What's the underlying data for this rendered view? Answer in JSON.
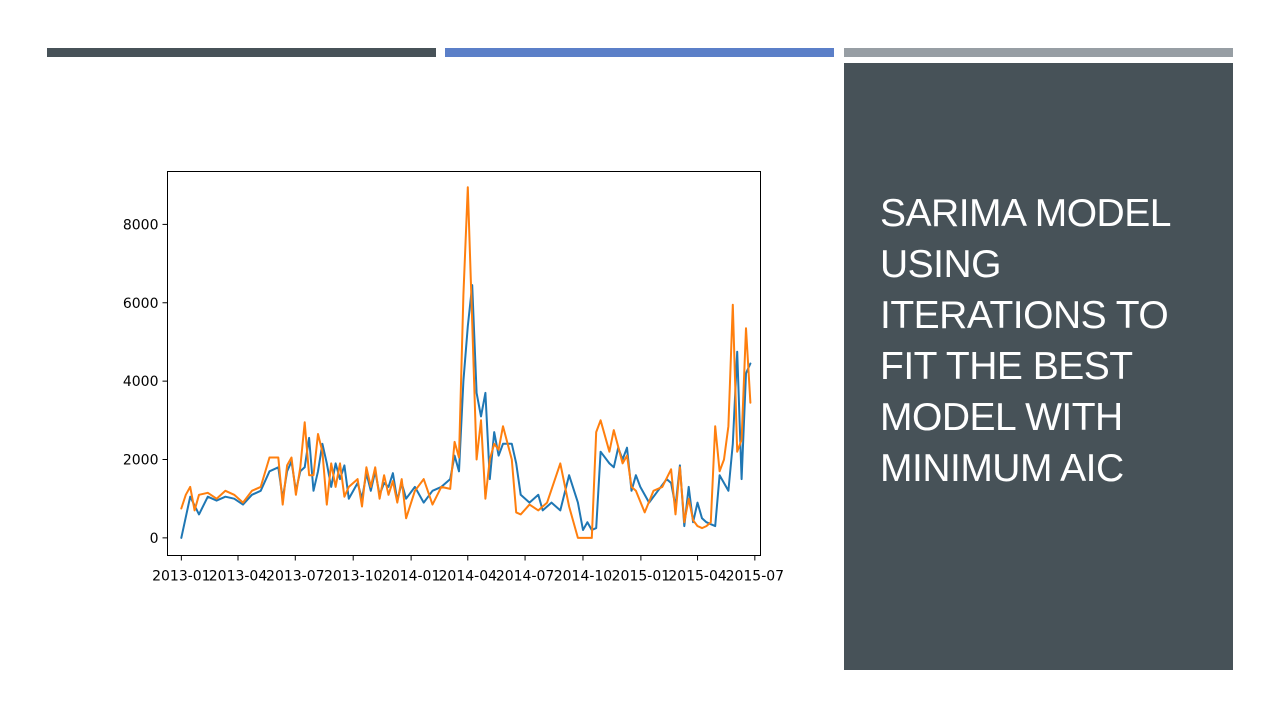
{
  "slide": {
    "title": "SARIMA MODEL USING ITERATIONS TO FIT THE BEST MODEL WITH MINIMUM AIC",
    "panel_color": "#475258",
    "accent_bars": [
      "#475258",
      "#5b7fc8",
      "#979ea4"
    ]
  },
  "chart_data": {
    "type": "line",
    "title": "",
    "xlabel": "",
    "ylabel": "",
    "grid": false,
    "legend": "none",
    "xlim": [
      "2012-12-10",
      "2015-07-10"
    ],
    "ylim": [
      -450,
      9350
    ],
    "xticks": [
      "2013-01",
      "2013-04",
      "2013-07",
      "2013-10",
      "2014-01",
      "2014-04",
      "2014-07",
      "2014-10",
      "2015-01",
      "2015-04",
      "2015-07"
    ],
    "xtick_dates": [
      "2013-01-01",
      "2013-04-01",
      "2013-07-01",
      "2013-10-01",
      "2014-01-01",
      "2014-04-01",
      "2014-07-01",
      "2014-10-01",
      "2015-01-01",
      "2015-04-01",
      "2015-07-01"
    ],
    "yticks": [
      0,
      2000,
      4000,
      6000,
      8000
    ],
    "series": [
      {
        "color": "#1f77b4",
        "points": [
          [
            "2013-01-01",
            0
          ],
          [
            "2013-01-15",
            1050
          ],
          [
            "2013-01-29",
            600
          ],
          [
            "2013-02-12",
            1050
          ],
          [
            "2013-02-26",
            950
          ],
          [
            "2013-03-12",
            1050
          ],
          [
            "2013-03-26",
            1000
          ],
          [
            "2013-04-09",
            850
          ],
          [
            "2013-04-23",
            1100
          ],
          [
            "2013-05-07",
            1200
          ],
          [
            "2013-05-21",
            1700
          ],
          [
            "2013-06-04",
            1800
          ],
          [
            "2013-06-11",
            1000
          ],
          [
            "2013-06-18",
            1700
          ],
          [
            "2013-06-25",
            1950
          ],
          [
            "2013-07-02",
            1200
          ],
          [
            "2013-07-09",
            1700
          ],
          [
            "2013-07-16",
            1800
          ],
          [
            "2013-07-23",
            2550
          ],
          [
            "2013-07-30",
            1200
          ],
          [
            "2013-08-06",
            1700
          ],
          [
            "2013-08-13",
            2400
          ],
          [
            "2013-08-20",
            1900
          ],
          [
            "2013-08-27",
            1300
          ],
          [
            "2013-09-03",
            1900
          ],
          [
            "2013-09-10",
            1500
          ],
          [
            "2013-09-17",
            1850
          ],
          [
            "2013-09-24",
            1000
          ],
          [
            "2013-10-08",
            1400
          ],
          [
            "2013-10-15",
            1000
          ],
          [
            "2013-10-22",
            1650
          ],
          [
            "2013-10-29",
            1200
          ],
          [
            "2013-11-05",
            1700
          ],
          [
            "2013-11-12",
            1100
          ],
          [
            "2013-11-19",
            1400
          ],
          [
            "2013-11-26",
            1300
          ],
          [
            "2013-12-03",
            1650
          ],
          [
            "2013-12-10",
            950
          ],
          [
            "2013-12-17",
            1400
          ],
          [
            "2013-12-24",
            1000
          ],
          [
            "2014-01-07",
            1300
          ],
          [
            "2014-01-21",
            900
          ],
          [
            "2014-02-04",
            1200
          ],
          [
            "2014-02-18",
            1300
          ],
          [
            "2014-03-04",
            1500
          ],
          [
            "2014-03-11",
            2100
          ],
          [
            "2014-03-18",
            1700
          ],
          [
            "2014-03-25",
            4000
          ],
          [
            "2014-04-01",
            5400
          ],
          [
            "2014-04-08",
            6450
          ],
          [
            "2014-04-15",
            3700
          ],
          [
            "2014-04-22",
            3100
          ],
          [
            "2014-04-29",
            3700
          ],
          [
            "2014-05-06",
            1500
          ],
          [
            "2014-05-13",
            2700
          ],
          [
            "2014-05-20",
            2100
          ],
          [
            "2014-05-27",
            2400
          ],
          [
            "2014-06-10",
            2400
          ],
          [
            "2014-06-17",
            1900
          ],
          [
            "2014-06-24",
            1100
          ],
          [
            "2014-07-08",
            900
          ],
          [
            "2014-07-22",
            1100
          ],
          [
            "2014-07-29",
            700
          ],
          [
            "2014-08-12",
            900
          ],
          [
            "2014-08-26",
            700
          ],
          [
            "2014-09-09",
            1600
          ],
          [
            "2014-09-23",
            900
          ],
          [
            "2014-10-01",
            200
          ],
          [
            "2014-10-08",
            400
          ],
          [
            "2014-10-15",
            200
          ],
          [
            "2014-10-22",
            250
          ],
          [
            "2014-10-29",
            2200
          ],
          [
            "2014-11-12",
            1900
          ],
          [
            "2014-11-19",
            1800
          ],
          [
            "2014-11-26",
            2300
          ],
          [
            "2014-12-03",
            2000
          ],
          [
            "2014-12-10",
            2300
          ],
          [
            "2014-12-17",
            1200
          ],
          [
            "2014-12-24",
            1600
          ],
          [
            "2014-12-31",
            1300
          ],
          [
            "2015-01-14",
            900
          ],
          [
            "2015-01-28",
            1200
          ],
          [
            "2015-02-11",
            1500
          ],
          [
            "2015-02-18",
            1400
          ],
          [
            "2015-02-25",
            800
          ],
          [
            "2015-03-04",
            1850
          ],
          [
            "2015-03-11",
            300
          ],
          [
            "2015-03-18",
            1300
          ],
          [
            "2015-03-25",
            400
          ],
          [
            "2015-04-01",
            900
          ],
          [
            "2015-04-08",
            500
          ],
          [
            "2015-04-15",
            400
          ],
          [
            "2015-04-22",
            350
          ],
          [
            "2015-04-29",
            300
          ],
          [
            "2015-05-06",
            1600
          ],
          [
            "2015-05-13",
            1400
          ],
          [
            "2015-05-20",
            1200
          ],
          [
            "2015-05-27",
            2400
          ],
          [
            "2015-06-03",
            4750
          ],
          [
            "2015-06-10",
            1500
          ],
          [
            "2015-06-17",
            4200
          ],
          [
            "2015-06-24",
            4450
          ]
        ]
      },
      {
        "color": "#ff7f0e",
        "points": [
          [
            "2013-01-01",
            750
          ],
          [
            "2013-01-08",
            1100
          ],
          [
            "2013-01-15",
            1300
          ],
          [
            "2013-01-22",
            700
          ],
          [
            "2013-01-29",
            1100
          ],
          [
            "2013-02-12",
            1150
          ],
          [
            "2013-02-26",
            1000
          ],
          [
            "2013-03-12",
            1200
          ],
          [
            "2013-03-26",
            1100
          ],
          [
            "2013-04-09",
            900
          ],
          [
            "2013-04-23",
            1200
          ],
          [
            "2013-05-07",
            1300
          ],
          [
            "2013-05-21",
            2050
          ],
          [
            "2013-06-04",
            2050
          ],
          [
            "2013-06-11",
            850
          ],
          [
            "2013-06-18",
            1850
          ],
          [
            "2013-06-25",
            2050
          ],
          [
            "2013-07-02",
            1100
          ],
          [
            "2013-07-09",
            1800
          ],
          [
            "2013-07-16",
            2950
          ],
          [
            "2013-07-23",
            1600
          ],
          [
            "2013-07-30",
            1600
          ],
          [
            "2013-08-06",
            2650
          ],
          [
            "2013-08-13",
            2200
          ],
          [
            "2013-08-20",
            850
          ],
          [
            "2013-08-27",
            1900
          ],
          [
            "2013-09-03",
            1300
          ],
          [
            "2013-09-10",
            1900
          ],
          [
            "2013-09-17",
            1050
          ],
          [
            "2013-09-24",
            1300
          ],
          [
            "2013-10-08",
            1500
          ],
          [
            "2013-10-15",
            800
          ],
          [
            "2013-10-22",
            1800
          ],
          [
            "2013-10-29",
            1300
          ],
          [
            "2013-11-05",
            1800
          ],
          [
            "2013-11-12",
            1000
          ],
          [
            "2013-11-19",
            1600
          ],
          [
            "2013-11-26",
            1100
          ],
          [
            "2013-12-03",
            1450
          ],
          [
            "2013-12-10",
            900
          ],
          [
            "2013-12-17",
            1500
          ],
          [
            "2013-12-24",
            500
          ],
          [
            "2014-01-07",
            1200
          ],
          [
            "2014-01-21",
            1500
          ],
          [
            "2014-02-04",
            850
          ],
          [
            "2014-02-18",
            1300
          ],
          [
            "2014-03-04",
            1250
          ],
          [
            "2014-03-11",
            2450
          ],
          [
            "2014-03-18",
            2050
          ],
          [
            "2014-03-25",
            6200
          ],
          [
            "2014-04-01",
            8950
          ],
          [
            "2014-04-08",
            5500
          ],
          [
            "2014-04-15",
            2000
          ],
          [
            "2014-04-22",
            3000
          ],
          [
            "2014-04-29",
            1000
          ],
          [
            "2014-05-06",
            2000
          ],
          [
            "2014-05-13",
            2400
          ],
          [
            "2014-05-20",
            2250
          ],
          [
            "2014-05-27",
            2850
          ],
          [
            "2014-06-10",
            2000
          ],
          [
            "2014-06-17",
            650
          ],
          [
            "2014-06-24",
            600
          ],
          [
            "2014-07-08",
            850
          ],
          [
            "2014-07-22",
            700
          ],
          [
            "2014-08-05",
            900
          ],
          [
            "2014-08-26",
            1900
          ],
          [
            "2014-09-09",
            800
          ],
          [
            "2014-09-23",
            0
          ],
          [
            "2014-10-01",
            0
          ],
          [
            "2014-10-08",
            0
          ],
          [
            "2014-10-15",
            0
          ],
          [
            "2014-10-22",
            2700
          ],
          [
            "2014-10-29",
            3000
          ],
          [
            "2014-11-12",
            2200
          ],
          [
            "2014-11-19",
            2750
          ],
          [
            "2014-12-03",
            1900
          ],
          [
            "2014-12-10",
            2100
          ],
          [
            "2014-12-17",
            1300
          ],
          [
            "2014-12-24",
            1200
          ],
          [
            "2015-01-07",
            650
          ],
          [
            "2015-01-21",
            1200
          ],
          [
            "2015-02-04",
            1300
          ],
          [
            "2015-02-18",
            1750
          ],
          [
            "2015-02-25",
            600
          ],
          [
            "2015-03-04",
            1800
          ],
          [
            "2015-03-11",
            400
          ],
          [
            "2015-03-18",
            1000
          ],
          [
            "2015-03-25",
            450
          ],
          [
            "2015-04-01",
            300
          ],
          [
            "2015-04-08",
            250
          ],
          [
            "2015-04-15",
            300
          ],
          [
            "2015-04-22",
            400
          ],
          [
            "2015-04-29",
            2850
          ],
          [
            "2015-05-06",
            1700
          ],
          [
            "2015-05-13",
            2000
          ],
          [
            "2015-05-20",
            2850
          ],
          [
            "2015-05-27",
            5950
          ],
          [
            "2015-06-03",
            2200
          ],
          [
            "2015-06-10",
            2500
          ],
          [
            "2015-06-17",
            5350
          ],
          [
            "2015-06-24",
            3450
          ]
        ]
      }
    ]
  }
}
